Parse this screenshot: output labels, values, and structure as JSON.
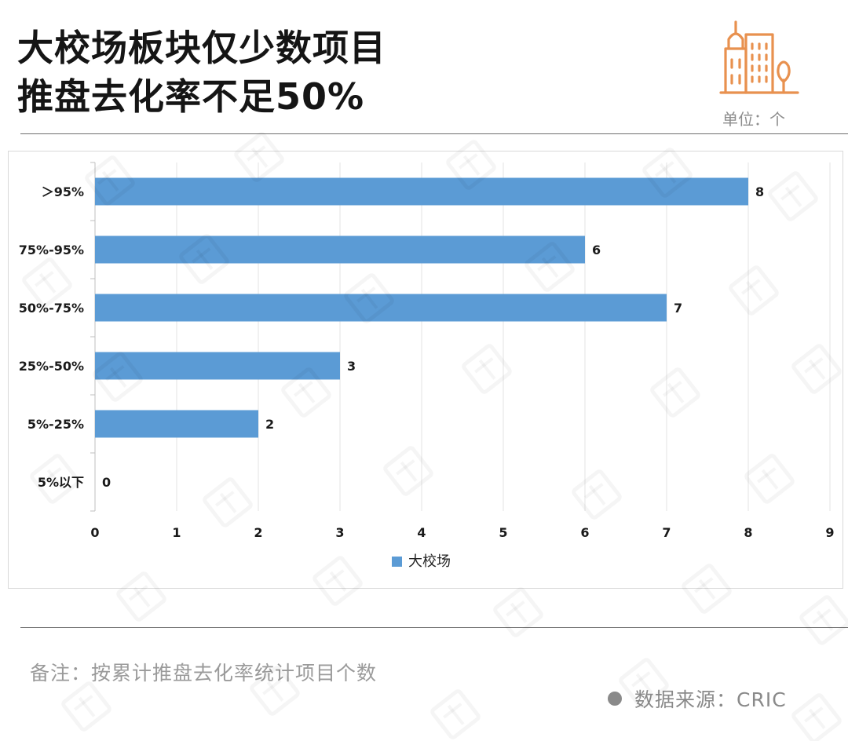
{
  "header": {
    "title_line1": "大校场板块仅少数项目",
    "title_line2": "推盘去化率不足50%",
    "unit": "单位：个"
  },
  "footer": {
    "note": "备注：按累计推盘去化率统计项目个数",
    "source": "数据来源：CRIC"
  },
  "colors": {
    "bar": "#5b9bd5",
    "accent_icon": "#e8914f",
    "title": "#151515",
    "muted_text": "#8c8c8c"
  },
  "icons": [
    "city-buildings-icon",
    "legend-square-icon",
    "source-dot-icon"
  ],
  "chart_data": {
    "type": "bar",
    "orientation": "horizontal",
    "categories": [
      "＞95%",
      "75%-95%",
      "50%-75%",
      "25%-50%",
      "5%-25%",
      "5%以下"
    ],
    "series": [
      {
        "name": "大校场",
        "values": [
          8,
          6,
          7,
          3,
          2,
          0
        ]
      }
    ],
    "xlim": [
      0,
      9
    ],
    "xticks": [
      "0",
      "1",
      "2",
      "3",
      "4",
      "5",
      "6",
      "7",
      "8",
      "9"
    ],
    "grid": "vertical",
    "legend": "bottom-center",
    "data_labels": true
  }
}
